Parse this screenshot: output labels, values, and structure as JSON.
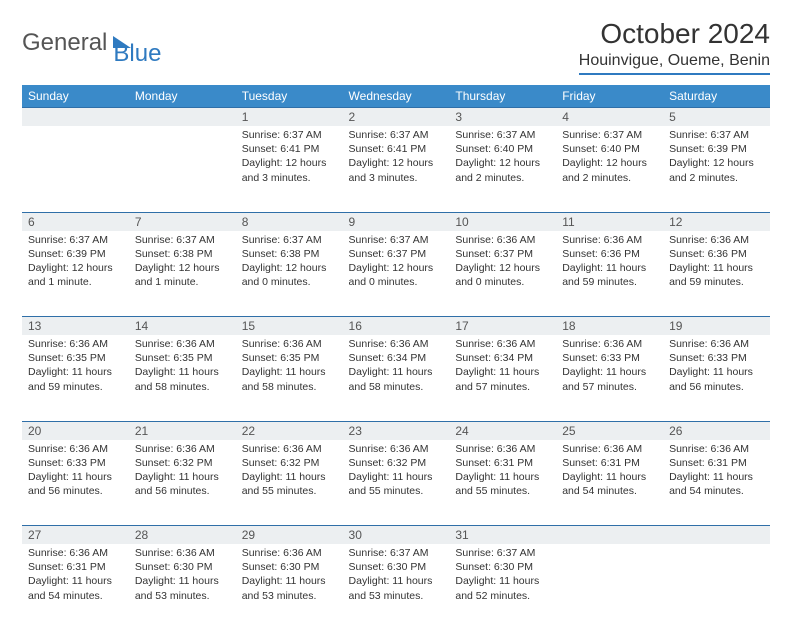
{
  "brand": {
    "part1": "General",
    "part2": "Blue"
  },
  "title": "October 2024",
  "location": "Houinvigue, Oueme, Benin",
  "colors": {
    "header_bg": "#3a8ac9",
    "header_text": "#ffffff",
    "daynum_bg": "#eceff1",
    "rule": "#2f6fa8",
    "brand_blue": "#2f7ac0",
    "body_text": "#333333",
    "page_bg": "#ffffff"
  },
  "dow": [
    "Sunday",
    "Monday",
    "Tuesday",
    "Wednesday",
    "Thursday",
    "Friday",
    "Saturday"
  ],
  "weeks": [
    [
      null,
      null,
      {
        "n": "1",
        "sr": "Sunrise: 6:37 AM",
        "ss": "Sunset: 6:41 PM",
        "dl": "Daylight: 12 hours and 3 minutes."
      },
      {
        "n": "2",
        "sr": "Sunrise: 6:37 AM",
        "ss": "Sunset: 6:41 PM",
        "dl": "Daylight: 12 hours and 3 minutes."
      },
      {
        "n": "3",
        "sr": "Sunrise: 6:37 AM",
        "ss": "Sunset: 6:40 PM",
        "dl": "Daylight: 12 hours and 2 minutes."
      },
      {
        "n": "4",
        "sr": "Sunrise: 6:37 AM",
        "ss": "Sunset: 6:40 PM",
        "dl": "Daylight: 12 hours and 2 minutes."
      },
      {
        "n": "5",
        "sr": "Sunrise: 6:37 AM",
        "ss": "Sunset: 6:39 PM",
        "dl": "Daylight: 12 hours and 2 minutes."
      }
    ],
    [
      {
        "n": "6",
        "sr": "Sunrise: 6:37 AM",
        "ss": "Sunset: 6:39 PM",
        "dl": "Daylight: 12 hours and 1 minute."
      },
      {
        "n": "7",
        "sr": "Sunrise: 6:37 AM",
        "ss": "Sunset: 6:38 PM",
        "dl": "Daylight: 12 hours and 1 minute."
      },
      {
        "n": "8",
        "sr": "Sunrise: 6:37 AM",
        "ss": "Sunset: 6:38 PM",
        "dl": "Daylight: 12 hours and 0 minutes."
      },
      {
        "n": "9",
        "sr": "Sunrise: 6:37 AM",
        "ss": "Sunset: 6:37 PM",
        "dl": "Daylight: 12 hours and 0 minutes."
      },
      {
        "n": "10",
        "sr": "Sunrise: 6:36 AM",
        "ss": "Sunset: 6:37 PM",
        "dl": "Daylight: 12 hours and 0 minutes."
      },
      {
        "n": "11",
        "sr": "Sunrise: 6:36 AM",
        "ss": "Sunset: 6:36 PM",
        "dl": "Daylight: 11 hours and 59 minutes."
      },
      {
        "n": "12",
        "sr": "Sunrise: 6:36 AM",
        "ss": "Sunset: 6:36 PM",
        "dl": "Daylight: 11 hours and 59 minutes."
      }
    ],
    [
      {
        "n": "13",
        "sr": "Sunrise: 6:36 AM",
        "ss": "Sunset: 6:35 PM",
        "dl": "Daylight: 11 hours and 59 minutes."
      },
      {
        "n": "14",
        "sr": "Sunrise: 6:36 AM",
        "ss": "Sunset: 6:35 PM",
        "dl": "Daylight: 11 hours and 58 minutes."
      },
      {
        "n": "15",
        "sr": "Sunrise: 6:36 AM",
        "ss": "Sunset: 6:35 PM",
        "dl": "Daylight: 11 hours and 58 minutes."
      },
      {
        "n": "16",
        "sr": "Sunrise: 6:36 AM",
        "ss": "Sunset: 6:34 PM",
        "dl": "Daylight: 11 hours and 58 minutes."
      },
      {
        "n": "17",
        "sr": "Sunrise: 6:36 AM",
        "ss": "Sunset: 6:34 PM",
        "dl": "Daylight: 11 hours and 57 minutes."
      },
      {
        "n": "18",
        "sr": "Sunrise: 6:36 AM",
        "ss": "Sunset: 6:33 PM",
        "dl": "Daylight: 11 hours and 57 minutes."
      },
      {
        "n": "19",
        "sr": "Sunrise: 6:36 AM",
        "ss": "Sunset: 6:33 PM",
        "dl": "Daylight: 11 hours and 56 minutes."
      }
    ],
    [
      {
        "n": "20",
        "sr": "Sunrise: 6:36 AM",
        "ss": "Sunset: 6:33 PM",
        "dl": "Daylight: 11 hours and 56 minutes."
      },
      {
        "n": "21",
        "sr": "Sunrise: 6:36 AM",
        "ss": "Sunset: 6:32 PM",
        "dl": "Daylight: 11 hours and 56 minutes."
      },
      {
        "n": "22",
        "sr": "Sunrise: 6:36 AM",
        "ss": "Sunset: 6:32 PM",
        "dl": "Daylight: 11 hours and 55 minutes."
      },
      {
        "n": "23",
        "sr": "Sunrise: 6:36 AM",
        "ss": "Sunset: 6:32 PM",
        "dl": "Daylight: 11 hours and 55 minutes."
      },
      {
        "n": "24",
        "sr": "Sunrise: 6:36 AM",
        "ss": "Sunset: 6:31 PM",
        "dl": "Daylight: 11 hours and 55 minutes."
      },
      {
        "n": "25",
        "sr": "Sunrise: 6:36 AM",
        "ss": "Sunset: 6:31 PM",
        "dl": "Daylight: 11 hours and 54 minutes."
      },
      {
        "n": "26",
        "sr": "Sunrise: 6:36 AM",
        "ss": "Sunset: 6:31 PM",
        "dl": "Daylight: 11 hours and 54 minutes."
      }
    ],
    [
      {
        "n": "27",
        "sr": "Sunrise: 6:36 AM",
        "ss": "Sunset: 6:31 PM",
        "dl": "Daylight: 11 hours and 54 minutes."
      },
      {
        "n": "28",
        "sr": "Sunrise: 6:36 AM",
        "ss": "Sunset: 6:30 PM",
        "dl": "Daylight: 11 hours and 53 minutes."
      },
      {
        "n": "29",
        "sr": "Sunrise: 6:36 AM",
        "ss": "Sunset: 6:30 PM",
        "dl": "Daylight: 11 hours and 53 minutes."
      },
      {
        "n": "30",
        "sr": "Sunrise: 6:37 AM",
        "ss": "Sunset: 6:30 PM",
        "dl": "Daylight: 11 hours and 53 minutes."
      },
      {
        "n": "31",
        "sr": "Sunrise: 6:37 AM",
        "ss": "Sunset: 6:30 PM",
        "dl": "Daylight: 11 hours and 52 minutes."
      },
      null,
      null
    ]
  ]
}
